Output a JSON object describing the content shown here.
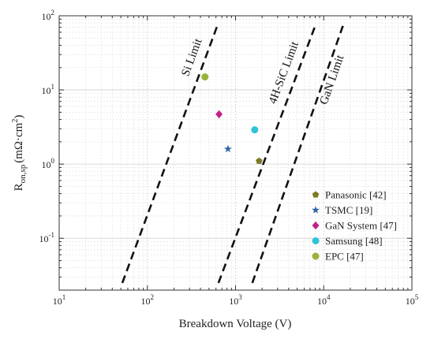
{
  "chart_data": {
    "type": "scatter",
    "x_scale": "log",
    "y_scale": "log",
    "xlim": [
      10,
      100000
    ],
    "ylim": [
      0.02,
      100
    ],
    "xlabel": "Breakdown Voltage (V)",
    "ylabel": "R_on,sp (mΩ·cm²)",
    "ylabel_parts": {
      "main": "R",
      "sub": "on,sp",
      "unit": "(mΩ·cm",
      "sup": "2",
      "close": ")"
    },
    "x_ticks": [
      {
        "value": 10,
        "base": "10",
        "exp": "1"
      },
      {
        "value": 100,
        "base": "10",
        "exp": "2"
      },
      {
        "value": 1000,
        "base": "10",
        "exp": "3"
      },
      {
        "value": 10000,
        "base": "10",
        "exp": "4"
      },
      {
        "value": 100000,
        "base": "10",
        "exp": "5"
      }
    ],
    "y_ticks": [
      {
        "value": 0.1,
        "base": "10",
        "exp": "-1"
      },
      {
        "value": 1,
        "base": "10",
        "exp": "0"
      },
      {
        "value": 10,
        "base": "10",
        "exp": "1"
      },
      {
        "value": 100,
        "base": "10",
        "exp": "2"
      }
    ],
    "grid": true,
    "legend_position": "bottom-right",
    "series": [
      {
        "name": "Panasonic [42]",
        "marker": "pentagon",
        "color": "#7d7a26",
        "points": [
          [
            1850,
            1.1
          ]
        ]
      },
      {
        "name": "TSMC [19]",
        "marker": "star",
        "color": "#2f67a8",
        "points": [
          [
            820,
            1.6
          ]
        ]
      },
      {
        "name": "GaN System [47]",
        "marker": "diamond",
        "color": "#c0228a",
        "points": [
          [
            650,
            4.7
          ]
        ]
      },
      {
        "name": "Samsung [48]",
        "marker": "circle",
        "color": "#2ec4d6",
        "points": [
          [
            1650,
            2.9
          ]
        ]
      },
      {
        "name": "EPC [47]",
        "marker": "circle",
        "color": "#99b33a",
        "points": [
          [
            450,
            15
          ]
        ]
      }
    ],
    "limit_lines": [
      {
        "name": "Si Limit",
        "points": [
          [
            52,
            0.025
          ],
          [
            620,
            73
          ]
        ]
      },
      {
        "name": "4H-SiC Limit",
        "points": [
          [
            640,
            0.025
          ],
          [
            8000,
            73
          ]
        ]
      },
      {
        "name": "GaN Limit",
        "points": [
          [
            1550,
            0.025
          ],
          [
            16500,
            73
          ]
        ]
      }
    ]
  }
}
